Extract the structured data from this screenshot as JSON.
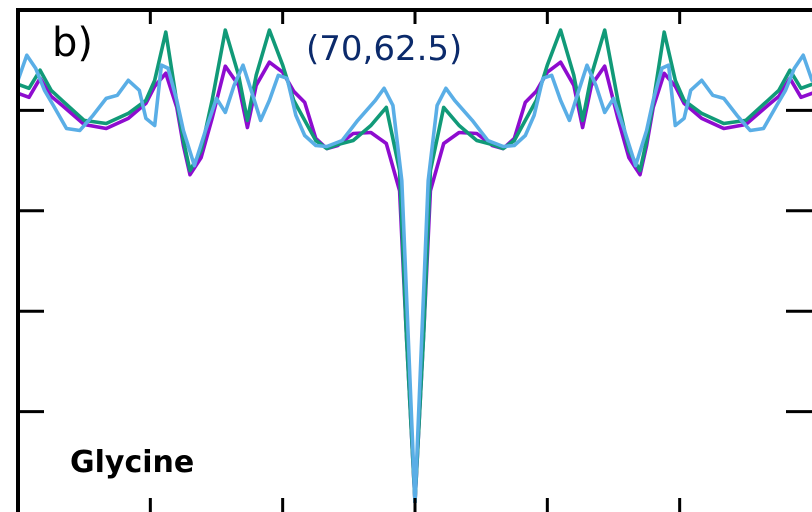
{
  "chart_data": {
    "type": "line",
    "panel_label": "b)",
    "annotation": "(70,62.5)",
    "molecule": "Glycine",
    "xlim": [
      -180,
      180
    ],
    "ylim": [
      -4,
      1
    ],
    "x_ticks": [
      -120,
      -60,
      0,
      60,
      120
    ],
    "y_ticks": [
      -3,
      -2,
      -1,
      0
    ],
    "colors": {
      "annotation": "#0b2a6b",
      "series": [
        "#8e0ccf",
        "#119a78",
        "#5aaee6"
      ]
    },
    "series": [
      {
        "values": [
          [
            -180,
            0.17
          ],
          [
            -175,
            0.13
          ],
          [
            -170,
            0.32
          ],
          [
            -165,
            0.14
          ],
          [
            -160,
            0.05
          ],
          [
            -150,
            -0.14
          ],
          [
            -140,
            -0.18
          ],
          [
            -130,
            -0.08
          ],
          [
            -122,
            0.07
          ],
          [
            -118,
            0.24
          ],
          [
            -113,
            0.37
          ],
          [
            -108,
            0.03
          ],
          [
            -105,
            -0.35
          ],
          [
            -102,
            -0.64
          ],
          [
            -97,
            -0.47
          ],
          [
            -92,
            -0.08
          ],
          [
            -86,
            0.44
          ],
          [
            -80,
            0.25
          ],
          [
            -76,
            -0.17
          ],
          [
            -72,
            0.25
          ],
          [
            -66,
            0.48
          ],
          [
            -60,
            0.38
          ],
          [
            -55,
            0.19
          ],
          [
            -50,
            0.08
          ],
          [
            -45,
            -0.28
          ],
          [
            -40,
            -0.38
          ],
          [
            -35,
            -0.35
          ],
          [
            -28,
            -0.23
          ],
          [
            -20,
            -0.22
          ],
          [
            -13,
            -0.33
          ],
          [
            -7,
            -0.8
          ],
          [
            -4,
            -2.2
          ],
          [
            0,
            -3.9
          ],
          [
            4,
            -2.2
          ],
          [
            7,
            -0.8
          ],
          [
            13,
            -0.33
          ],
          [
            20,
            -0.22
          ],
          [
            28,
            -0.23
          ],
          [
            35,
            -0.35
          ],
          [
            40,
            -0.38
          ],
          [
            45,
            -0.28
          ],
          [
            50,
            0.08
          ],
          [
            55,
            0.19
          ],
          [
            60,
            0.38
          ],
          [
            66,
            0.48
          ],
          [
            72,
            0.25
          ],
          [
            76,
            -0.17
          ],
          [
            80,
            0.25
          ],
          [
            86,
            0.44
          ],
          [
            92,
            -0.08
          ],
          [
            97,
            -0.47
          ],
          [
            102,
            -0.64
          ],
          [
            105,
            -0.35
          ],
          [
            108,
            0.03
          ],
          [
            113,
            0.37
          ],
          [
            118,
            0.24
          ],
          [
            122,
            0.07
          ],
          [
            130,
            -0.08
          ],
          [
            140,
            -0.18
          ],
          [
            150,
            -0.14
          ],
          [
            160,
            0.05
          ],
          [
            165,
            0.14
          ],
          [
            170,
            0.32
          ],
          [
            175,
            0.13
          ],
          [
            180,
            0.17
          ]
        ]
      },
      {
        "values": [
          [
            -180,
            0.26
          ],
          [
            -175,
            0.22
          ],
          [
            -170,
            0.4
          ],
          [
            -165,
            0.2
          ],
          [
            -160,
            0.1
          ],
          [
            -150,
            -0.1
          ],
          [
            -140,
            -0.13
          ],
          [
            -130,
            -0.03
          ],
          [
            -122,
            0.1
          ],
          [
            -118,
            0.3
          ],
          [
            -113,
            0.78
          ],
          [
            -108,
            0.08
          ],
          [
            -105,
            -0.3
          ],
          [
            -102,
            -0.6
          ],
          [
            -97,
            -0.4
          ],
          [
            -92,
            0.1
          ],
          [
            -86,
            0.8
          ],
          [
            -80,
            0.35
          ],
          [
            -76,
            -0.1
          ],
          [
            -72,
            0.35
          ],
          [
            -66,
            0.8
          ],
          [
            -60,
            0.45
          ],
          [
            -55,
            0.1
          ],
          [
            -50,
            -0.1
          ],
          [
            -45,
            -0.3
          ],
          [
            -40,
            -0.38
          ],
          [
            -35,
            -0.34
          ],
          [
            -28,
            -0.3
          ],
          [
            -20,
            -0.15
          ],
          [
            -13,
            0.03
          ],
          [
            -7,
            -0.6
          ],
          [
            -4,
            -2.2
          ],
          [
            0,
            -3.9
          ],
          [
            4,
            -2.2
          ],
          [
            7,
            -0.6
          ],
          [
            13,
            0.03
          ],
          [
            20,
            -0.15
          ],
          [
            28,
            -0.3
          ],
          [
            35,
            -0.34
          ],
          [
            40,
            -0.38
          ],
          [
            45,
            -0.3
          ],
          [
            50,
            -0.1
          ],
          [
            55,
            0.1
          ],
          [
            60,
            0.45
          ],
          [
            66,
            0.8
          ],
          [
            72,
            0.35
          ],
          [
            76,
            -0.1
          ],
          [
            80,
            0.35
          ],
          [
            86,
            0.8
          ],
          [
            92,
            0.1
          ],
          [
            97,
            -0.4
          ],
          [
            102,
            -0.6
          ],
          [
            105,
            -0.3
          ],
          [
            108,
            0.08
          ],
          [
            113,
            0.78
          ],
          [
            118,
            0.3
          ],
          [
            122,
            0.1
          ],
          [
            130,
            -0.03
          ],
          [
            140,
            -0.13
          ],
          [
            150,
            -0.1
          ],
          [
            160,
            0.1
          ],
          [
            165,
            0.2
          ],
          [
            170,
            0.4
          ],
          [
            175,
            0.22
          ],
          [
            180,
            0.26
          ]
        ]
      },
      {
        "values": [
          [
            -180,
            0.3
          ],
          [
            -176,
            0.55
          ],
          [
            -172,
            0.42
          ],
          [
            -168,
            0.2
          ],
          [
            -164,
            0.05
          ],
          [
            -158,
            -0.18
          ],
          [
            -152,
            -0.2
          ],
          [
            -146,
            -0.05
          ],
          [
            -140,
            0.12
          ],
          [
            -135,
            0.15
          ],
          [
            -130,
            0.3
          ],
          [
            -125,
            0.2
          ],
          [
            -122,
            -0.08
          ],
          [
            -118,
            -0.15
          ],
          [
            -115,
            0.45
          ],
          [
            -112,
            0.42
          ],
          [
            -108,
            0.1
          ],
          [
            -105,
            -0.2
          ],
          [
            -100,
            -0.55
          ],
          [
            -95,
            -0.2
          ],
          [
            -90,
            0.12
          ],
          [
            -86,
            -0.02
          ],
          [
            -82,
            0.25
          ],
          [
            -78,
            0.45
          ],
          [
            -74,
            0.18
          ],
          [
            -70,
            -0.1
          ],
          [
            -66,
            0.1
          ],
          [
            -62,
            0.35
          ],
          [
            -58,
            0.32
          ],
          [
            -54,
            -0.05
          ],
          [
            -50,
            -0.25
          ],
          [
            -45,
            -0.35
          ],
          [
            -40,
            -0.36
          ],
          [
            -33,
            -0.3
          ],
          [
            -26,
            -0.1
          ],
          [
            -18,
            0.1
          ],
          [
            -14,
            0.22
          ],
          [
            -10,
            0.05
          ],
          [
            -6,
            -0.7
          ],
          [
            -3,
            -2.3
          ],
          [
            0,
            -3.9
          ],
          [
            3,
            -2.3
          ],
          [
            6,
            -0.7
          ],
          [
            10,
            0.05
          ],
          [
            14,
            0.22
          ],
          [
            18,
            0.1
          ],
          [
            26,
            -0.1
          ],
          [
            33,
            -0.3
          ],
          [
            40,
            -0.36
          ],
          [
            45,
            -0.35
          ],
          [
            50,
            -0.25
          ],
          [
            54,
            -0.05
          ],
          [
            58,
            0.32
          ],
          [
            62,
            0.35
          ],
          [
            66,
            0.1
          ],
          [
            70,
            -0.1
          ],
          [
            74,
            0.18
          ],
          [
            78,
            0.45
          ],
          [
            82,
            0.25
          ],
          [
            86,
            -0.02
          ],
          [
            90,
            0.12
          ],
          [
            95,
            -0.2
          ],
          [
            100,
            -0.55
          ],
          [
            105,
            -0.2
          ],
          [
            108,
            0.1
          ],
          [
            112,
            0.42
          ],
          [
            115,
            0.45
          ],
          [
            118,
            -0.15
          ],
          [
            122,
            -0.08
          ],
          [
            125,
            0.2
          ],
          [
            130,
            0.3
          ],
          [
            135,
            0.15
          ],
          [
            140,
            0.12
          ],
          [
            146,
            -0.05
          ],
          [
            152,
            -0.2
          ],
          [
            158,
            -0.18
          ],
          [
            164,
            0.05
          ],
          [
            168,
            0.2
          ],
          [
            172,
            0.42
          ],
          [
            176,
            0.55
          ],
          [
            180,
            0.3
          ]
        ]
      }
    ]
  }
}
